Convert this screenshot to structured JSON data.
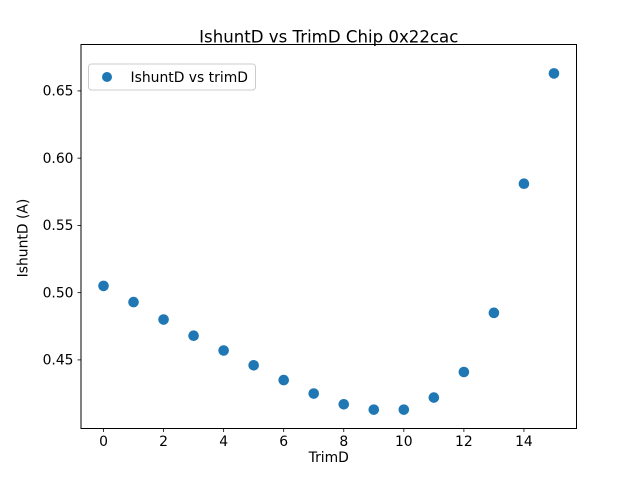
{
  "figure": {
    "background_color": "#ffffff",
    "text_color": "#000000",
    "spine_color": "#000000",
    "legend_border_color": "#cccccc"
  },
  "chart_data": {
    "type": "scatter",
    "title": "IshuntD vs TrimD Chip 0x22cac",
    "xlabel": "TrimD",
    "ylabel": "IshuntD (A)",
    "legend": {
      "entries": [
        "IshuntD vs trimD"
      ],
      "position": "upper left"
    },
    "marker_color": "#1f77b4",
    "marker_style": "circle",
    "x": [
      0,
      1,
      2,
      3,
      4,
      5,
      6,
      7,
      8,
      9,
      10,
      11,
      12,
      13,
      14,
      15
    ],
    "y": [
      0.505,
      0.493,
      0.48,
      0.468,
      0.457,
      0.446,
      0.435,
      0.425,
      0.417,
      0.413,
      0.413,
      0.422,
      0.441,
      0.485,
      0.581,
      0.663
    ],
    "xticks": [
      0,
      2,
      4,
      6,
      8,
      10,
      12,
      14
    ],
    "yticks": [
      0.45,
      0.5,
      0.55,
      0.6,
      0.65
    ],
    "xlim": [
      -0.75,
      15.75
    ],
    "ylim": [
      0.399,
      0.6845
    ],
    "grid": false
  }
}
